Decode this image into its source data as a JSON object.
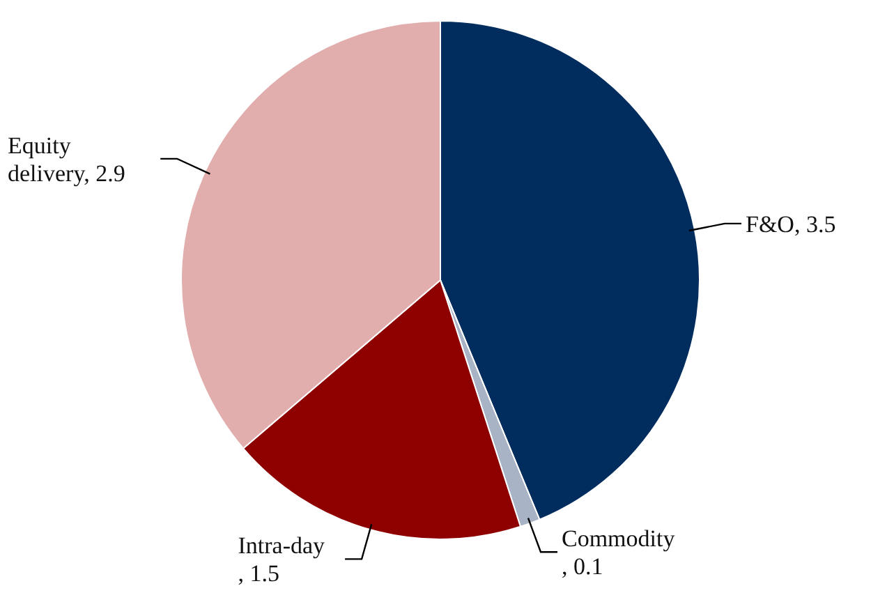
{
  "chart_data": {
    "type": "pie",
    "categories": [
      "F&O",
      "Commodity",
      "Intra-day",
      "Equity delivery"
    ],
    "values": [
      3.5,
      0.1,
      1.5,
      2.9
    ],
    "value_labels": [
      ", 3.5",
      ", 0.1",
      ", 1.5",
      ", 2.9"
    ],
    "colors": [
      "#002d5e",
      "#a9b3c6",
      "#8e0000",
      "#e2adad"
    ]
  }
}
